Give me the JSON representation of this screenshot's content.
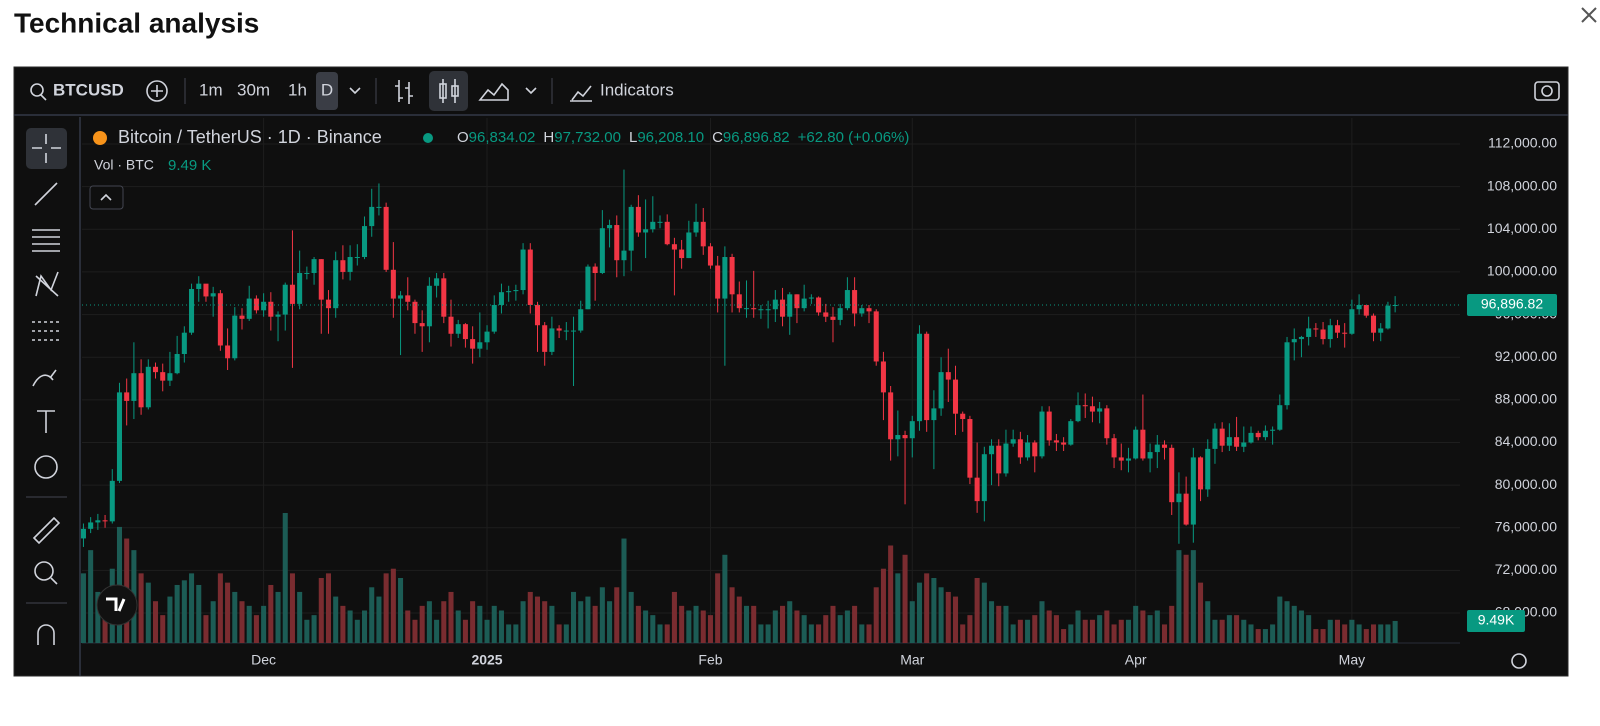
{
  "header": {
    "title": "Technical analysis"
  },
  "toolbar": {
    "symbol": "BTCUSD",
    "intervals": [
      "1m",
      "30m",
      "1h",
      "D"
    ],
    "indicators": "Indicators"
  },
  "legend": {
    "title": "Bitcoin / TetherUS · 1D · Binance",
    "o": "O",
    "o_value": "96,834.02",
    "h": "H",
    "h_value": "97,732.00",
    "l": "L",
    "l_value": "96,208.10",
    "c": "C",
    "c_value": "96,896.82",
    "change": "+62.80 (+0.06%)",
    "volume_title": "Vol · BTC",
    "volume_value": "9.49 K"
  },
  "chart_data": {
    "type": "candlestick",
    "grid": true,
    "up_color": "#089981",
    "down_color": "#f23645",
    "volume_up_color": "#1c5c55",
    "volume_down_color": "#7a2c30",
    "xlim": [
      -0.2,
      191
    ],
    "xticks": [
      {
        "value": 25,
        "label": "Dec"
      },
      {
        "value": 56,
        "label": "2025"
      },
      {
        "value": 87,
        "label": "Feb"
      },
      {
        "value": 115,
        "label": "Mar"
      },
      {
        "value": 146,
        "label": "Apr"
      },
      {
        "value": 176,
        "label": "May"
      }
    ],
    "ylim": [
      65190,
      114440
    ],
    "yticks": [
      {
        "value": 68000,
        "label": "68,000.00"
      },
      {
        "value": 72000,
        "label": "72,000.00"
      },
      {
        "value": 76000,
        "label": "76,000.00"
      },
      {
        "value": 80000,
        "label": "80,000.00"
      },
      {
        "value": 84000,
        "label": "84,000.00"
      },
      {
        "value": 88000,
        "label": "88,000.00"
      },
      {
        "value": 92000,
        "label": "92,000.00"
      },
      {
        "value": 96000,
        "label": "96,000.00"
      },
      {
        "value": 100000,
        "label": "100,000.00"
      },
      {
        "value": 104000,
        "label": "104,000.00"
      },
      {
        "value": 108000,
        "label": "108,000.00"
      },
      {
        "value": 112000,
        "label": "112,000.00"
      }
    ],
    "last_price_label": "96,896.82",
    "last_volume_label": "9.49K",
    "open": [
      75000,
      75900,
      76500,
      76700,
      76600,
      80400,
      88700,
      87900,
      90500,
      87300,
      91100,
      90600,
      89800,
      90500,
      92300,
      94300,
      98400,
      98900,
      97700,
      98000,
      93100,
      91900,
      95900,
      95600,
      97500,
      96400,
      97200,
      95800,
      96000,
      98800,
      97000,
      99900,
      99900,
      101200,
      97400,
      96600,
      101100,
      100000,
      101400,
      101400,
      104300,
      106100,
      106100,
      100200,
      97500,
      97800,
      97200,
      95200,
      94900,
      98700,
      99400,
      95800,
      94200,
      95100,
      93700,
      92800,
      93400,
      94400,
      96900,
      98100,
      98200,
      98300,
      102100,
      96900,
      95000,
      92500,
      94700,
      94500,
      94500,
      94500,
      96500,
      100500,
      99900,
      104100,
      104400,
      101100,
      102000,
      106100,
      103700,
      104000,
      104700,
      104700,
      102600,
      102100,
      101300,
      103700,
      104700,
      102400,
      100600,
      97500,
      101400,
      97900,
      96600,
      96600,
      96500,
      96500,
      96500,
      97400,
      95800,
      97900,
      96600,
      97500,
      97600,
      96200,
      95800,
      95500,
      96600,
      98300,
      96100,
      96600,
      96300,
      91600,
      88700,
      84300,
      84700,
      84400,
      86000,
      94200,
      86100,
      87200,
      90600,
      89900,
      86700,
      86200,
      80700,
      78500,
      82900,
      83700,
      81100,
      83900,
      84300,
      82600,
      84000,
      82700,
      86900,
      84200,
      84000,
      83800,
      86000,
      87500,
      87400,
      86900,
      87200,
      84400,
      82600,
      82300,
      82500,
      85200,
      82500,
      83100,
      83800,
      83500,
      78400,
      79200,
      76300,
      82600,
      79600,
      83400,
      85300,
      83700,
      84500,
      83600,
      84000,
      84900,
      84500,
      85100,
      85200,
      87500,
      93400,
      93700,
      93900,
      94700,
      94600,
      93700,
      95000,
      94300,
      94200,
      96500,
      96900,
      95900,
      94300,
      94700,
      96834.02
    ],
    "high": [
      76400,
      77000,
      77300,
      77200,
      81500,
      89600,
      90000,
      93400,
      91800,
      91800,
      91500,
      91400,
      92500,
      94000,
      94900,
      98900,
      99600,
      98800,
      98600,
      98300,
      94700,
      96700,
      96600,
      98700,
      97800,
      98000,
      98100,
      96300,
      99000,
      103900,
      102000,
      100500,
      101400,
      101200,
      98300,
      101900,
      102500,
      102500,
      102600,
      105200,
      107800,
      108300,
      106500,
      102800,
      98200,
      99500,
      97400,
      96400,
      99500,
      99900,
      99900,
      97400,
      95500,
      95200,
      94900,
      96200,
      95000,
      97800,
      98900,
      98700,
      98800,
      102700,
      102700,
      97200,
      95300,
      95800,
      95000,
      95300,
      95800,
      97300,
      100700,
      100800,
      105800,
      104900,
      105300,
      109600,
      106300,
      107200,
      106800,
      107100,
      105300,
      105400,
      103200,
      103000,
      104800,
      106400,
      106000,
      102700,
      101500,
      102400,
      101700,
      99100,
      99200,
      100100,
      96900,
      97300,
      98300,
      98500,
      98100,
      97900,
      98800,
      97900,
      97700,
      97000,
      96700,
      97000,
      99500,
      99500,
      96900,
      96900,
      96500,
      92500,
      89300,
      87000,
      85100,
      86500,
      95000,
      94400,
      88900,
      92000,
      92800,
      91200,
      86900,
      86500,
      84000,
      83600,
      84300,
      84300,
      85200,
      85200,
      85000,
      84700,
      84200,
      87400,
      87400,
      84800,
      84500,
      86200,
      88700,
      88600,
      88300,
      87800,
      87500,
      84800,
      83900,
      83500,
      85500,
      88500,
      83900,
      84700,
      84200,
      83800,
      81200,
      80800,
      83500,
      82700,
      84300,
      85800,
      85900,
      85800,
      86400,
      85500,
      85500,
      85100,
      85600,
      85500,
      88500,
      93900,
      94700,
      94000,
      95800,
      95200,
      95300,
      95600,
      95500,
      95200,
      97400,
      97900,
      96900,
      96100,
      95200,
      97200,
      97732.0
    ],
    "low": [
      74200,
      75500,
      75800,
      76000,
      76400,
      80200,
      85600,
      86200,
      86600,
      87100,
      90000,
      88800,
      89300,
      90400,
      91500,
      94100,
      97200,
      97200,
      95800,
      92600,
      90800,
      91700,
      94600,
      95400,
      96100,
      95800,
      94500,
      93500,
      94500,
      91000,
      96500,
      99300,
      98800,
      94200,
      94200,
      95700,
      99300,
      99200,
      100600,
      101200,
      103300,
      105300,
      100000,
      95700,
      92200,
      96400,
      94200,
      92500,
      93400,
      97600,
      95200,
      93000,
      93800,
      92900,
      91400,
      92000,
      92700,
      94200,
      96100,
      97200,
      97300,
      97900,
      96100,
      92500,
      91200,
      92200,
      93800,
      93600,
      89300,
      94300,
      96500,
      97300,
      99800,
      102300,
      99500,
      99600,
      100100,
      103300,
      101300,
      103700,
      104100,
      102500,
      97800,
      100300,
      101300,
      103300,
      101600,
      100300,
      96200,
      91200,
      96200,
      96200,
      95700,
      95700,
      95600,
      94700,
      95300,
      94900,
      94100,
      95200,
      96300,
      97000,
      95900,
      95300,
      93400,
      95000,
      96400,
      94900,
      95800,
      95200,
      91200,
      86100,
      82300,
      82700,
      78200,
      82600,
      85100,
      85000,
      81500,
      86500,
      87800,
      84700,
      85000,
      80100,
      77400,
      76600,
      80000,
      79900,
      80800,
      83600,
      82000,
      82300,
      81200,
      82500,
      83700,
      83200,
      83200,
      83700,
      85900,
      86300,
      85900,
      85800,
      83800,
      81600,
      81400,
      81200,
      82400,
      82300,
      81200,
      81600,
      82400,
      77200,
      74500,
      76200,
      74600,
      78500,
      78900,
      82000,
      83100,
      83200,
      83200,
      83100,
      83900,
      84200,
      84200,
      83800,
      85100,
      87100,
      91700,
      92000,
      93100,
      93900,
      93200,
      92900,
      93800,
      92900,
      94100,
      96000,
      95700,
      93500,
      93500,
      94600,
      96208.1
    ],
    "close": [
      75900,
      76500,
      76700,
      76600,
      80400,
      88700,
      87900,
      90500,
      87300,
      91100,
      90600,
      89800,
      90500,
      92300,
      94300,
      98400,
      98900,
      97700,
      98000,
      93100,
      91900,
      95900,
      95600,
      97500,
      96400,
      97200,
      95800,
      96000,
      98800,
      97000,
      99900,
      99900,
      101200,
      97400,
      96600,
      101100,
      100000,
      101400,
      101400,
      104300,
      106100,
      106100,
      100200,
      97500,
      97800,
      97200,
      95200,
      94900,
      98700,
      99400,
      95800,
      94200,
      95100,
      93700,
      92800,
      93400,
      94400,
      96900,
      98100,
      98200,
      98300,
      102100,
      96900,
      95000,
      92500,
      94700,
      94500,
      94500,
      94500,
      96500,
      100500,
      99900,
      104100,
      104400,
      101100,
      102000,
      106100,
      103700,
      104000,
      104700,
      104700,
      102600,
      102100,
      101300,
      103700,
      104700,
      102400,
      100600,
      97500,
      101400,
      97900,
      96600,
      96600,
      96500,
      96500,
      96500,
      97400,
      95800,
      97900,
      96600,
      97500,
      97600,
      96200,
      95800,
      95500,
      96600,
      98300,
      96100,
      96600,
      96300,
      91600,
      88700,
      84300,
      84700,
      84400,
      86000,
      94200,
      86100,
      87200,
      90600,
      89900,
      86700,
      86200,
      80700,
      78500,
      82900,
      83700,
      81100,
      83900,
      84300,
      82600,
      84000,
      82700,
      86900,
      84200,
      84000,
      83800,
      86000,
      87500,
      87400,
      86900,
      87200,
      84400,
      82600,
      82300,
      82500,
      85200,
      82500,
      83100,
      83800,
      83500,
      78400,
      79200,
      76300,
      82600,
      79600,
      83400,
      85300,
      83700,
      84500,
      83600,
      84000,
      84900,
      84500,
      85100,
      85200,
      87500,
      93400,
      93700,
      93900,
      94700,
      94600,
      93700,
      95000,
      94300,
      94200,
      96500,
      96900,
      95900,
      94300,
      94700,
      96834.02,
      96896.82
    ],
    "volume": [
      30000,
      40000,
      22000,
      14000,
      32000,
      50000,
      45000,
      40000,
      30000,
      26000,
      18000,
      12000,
      20000,
      25000,
      27000,
      30000,
      25000,
      12000,
      18000,
      30000,
      26000,
      22000,
      18000,
      16000,
      12000,
      16000,
      25000,
      22000,
      56000,
      30000,
      22000,
      10000,
      12000,
      28000,
      30000,
      20000,
      16000,
      14000,
      10000,
      14000,
      24000,
      20000,
      30000,
      32000,
      28000,
      14000,
      10000,
      16000,
      18000,
      10000,
      18000,
      22000,
      14000,
      10000,
      18000,
      16000,
      10000,
      16000,
      14000,
      8000,
      8000,
      18000,
      22000,
      20000,
      18000,
      16000,
      8000,
      8000,
      22000,
      18000,
      20000,
      16000,
      24000,
      18000,
      24000,
      45000,
      22000,
      16000,
      14000,
      12000,
      8000,
      8000,
      22000,
      16000,
      14000,
      16000,
      14000,
      12000,
      30000,
      38000,
      24000,
      20000,
      16000,
      16000,
      8000,
      8000,
      14000,
      16000,
      18000,
      14000,
      12000,
      8000,
      8000,
      12000,
      16000,
      12000,
      14000,
      16000,
      8000,
      8000,
      24000,
      32000,
      42000,
      30000,
      38000,
      18000,
      26000,
      30000,
      28000,
      24000,
      22000,
      20000,
      8000,
      12000,
      28000,
      26000,
      18000,
      16000,
      16000,
      8000,
      10000,
      10000,
      12000,
      18000,
      14000,
      12000,
      6000,
      8000,
      14000,
      10000,
      10000,
      12000,
      14000,
      8000,
      10000,
      10000,
      16000,
      14000,
      12000,
      14000,
      8000,
      16000,
      40000,
      38000,
      40000,
      26000,
      18000,
      10000,
      10000,
      12000,
      12000,
      10000,
      8000,
      6000,
      6000,
      8000,
      20000,
      18000,
      16000,
      14000,
      12000,
      6000,
      6000,
      10000,
      10000,
      8000,
      10000,
      8000,
      6000,
      8000,
      8000,
      8000,
      9490
    ]
  }
}
